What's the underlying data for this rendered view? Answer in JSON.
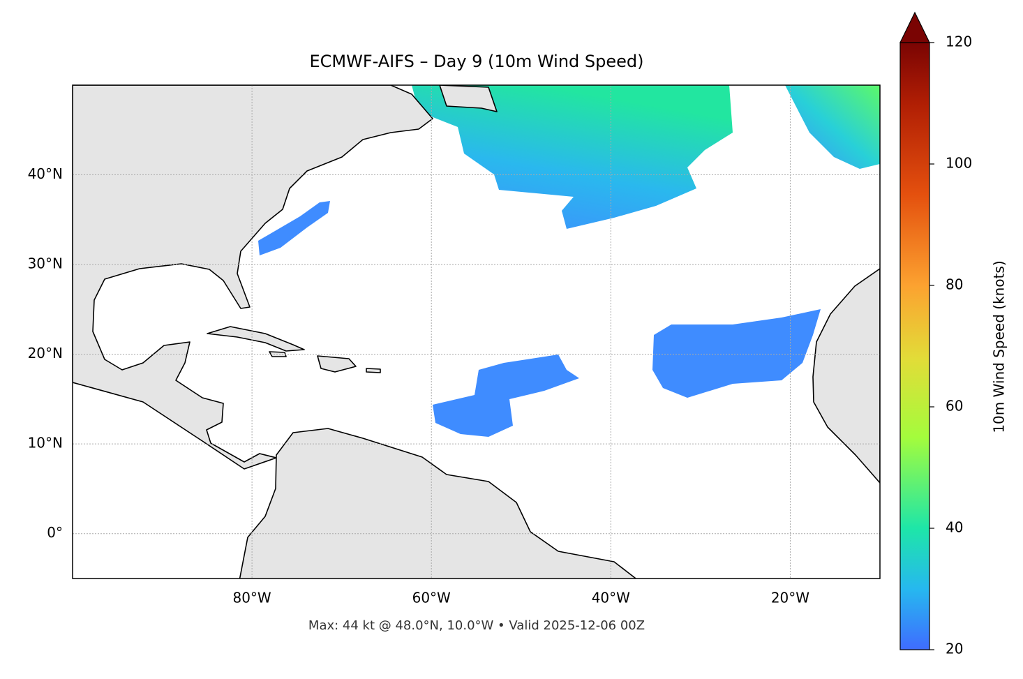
{
  "chart_data": {
    "type": "map",
    "title": "ECMWF-AIFS – Day 9 (10m Wind Speed)",
    "footer": "Max: 44 kt @ 48.0°N, 10.0°W • Valid 2025-12-06 00Z",
    "xlim": [
      -100,
      -10
    ],
    "ylim": [
      -5,
      50
    ],
    "xticks": [
      {
        "value": -80,
        "label": "80°W"
      },
      {
        "value": -60,
        "label": "60°W"
      },
      {
        "value": -40,
        "label": "40°W"
      },
      {
        "value": -20,
        "label": "20°W"
      }
    ],
    "yticks": [
      {
        "value": 0,
        "label": "0°"
      },
      {
        "value": 10,
        "label": "10°N"
      },
      {
        "value": 20,
        "label": "20°N"
      },
      {
        "value": 30,
        "label": "30°N"
      },
      {
        "value": 40,
        "label": "40°N"
      }
    ],
    "grid": true,
    "colorbar": {
      "label": "10m Wind Speed (knots)",
      "lim": [
        20,
        120
      ],
      "ticks": [
        20,
        40,
        60,
        80,
        100,
        120
      ],
      "extend": "max"
    }
  }
}
